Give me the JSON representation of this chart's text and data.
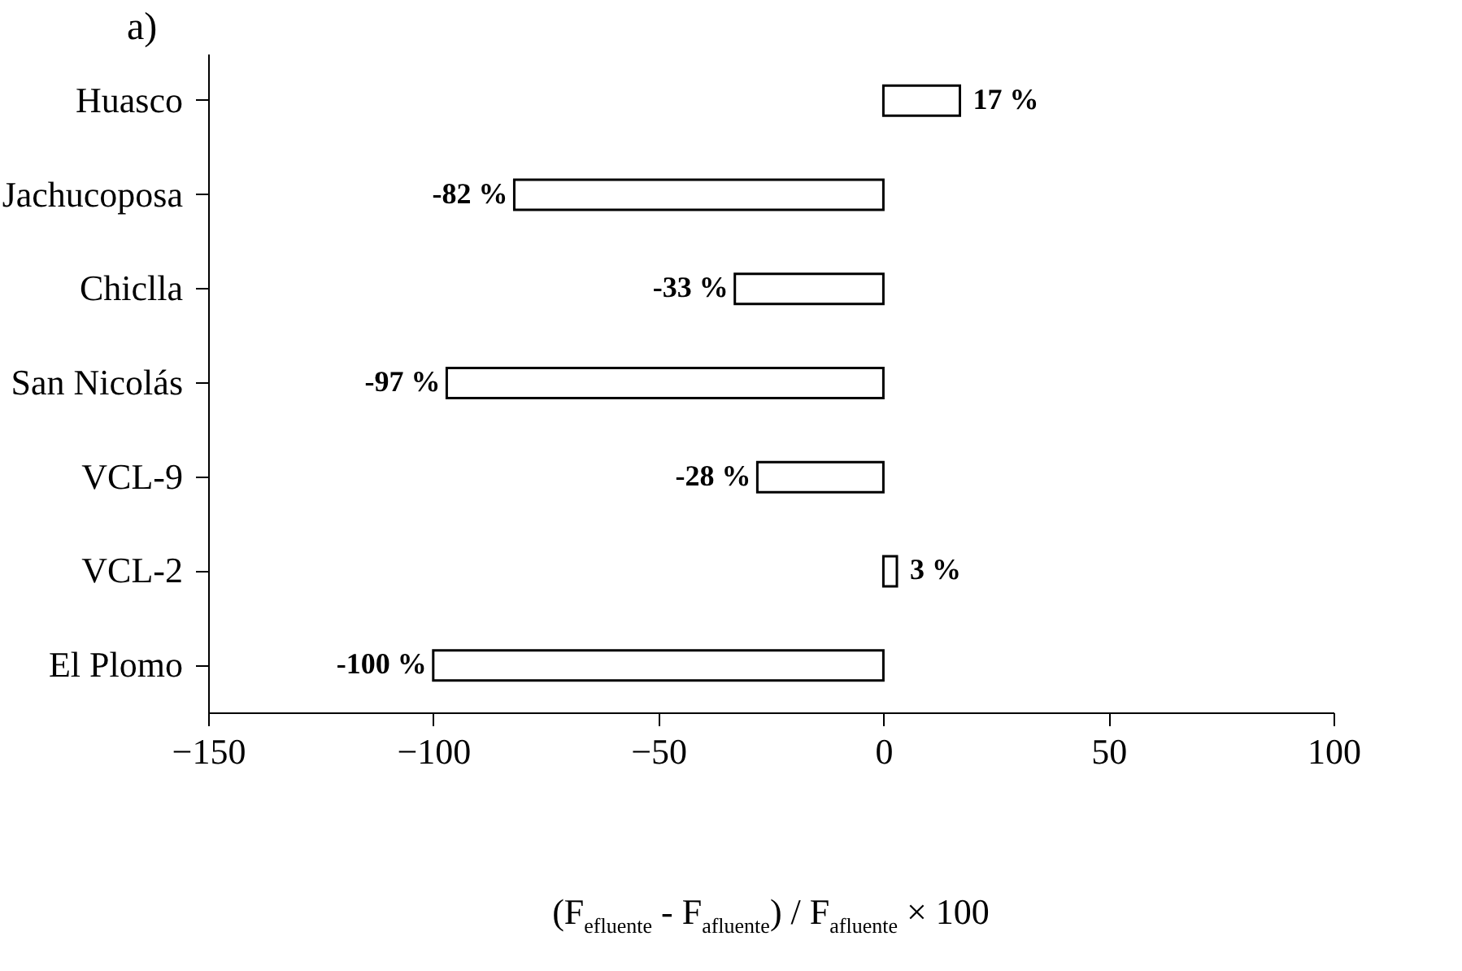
{
  "chart_data": {
    "type": "bar",
    "orientation": "horizontal",
    "title": "a)",
    "xlabel": "(F$_{efluente}$ - F$_{afluente}$) / F$_{afluente}$ × 100",
    "categories": [
      "Huasco",
      "Jachucoposa",
      "Chiclla",
      "San Nicolás",
      "VCL-9",
      "VCL-2",
      "El Plomo"
    ],
    "values": [
      17,
      -82,
      -33,
      -97,
      -28,
      3,
      -100
    ],
    "value_labels": [
      "17 %",
      "-82 %",
      "-33 %",
      "-97 %",
      "-28 %",
      "3 %",
      "-100 %"
    ],
    "color": "#ffffff",
    "xlim": [
      -150,
      100
    ],
    "xticks": [
      -150,
      -100,
      -50,
      0,
      50,
      100
    ],
    "grid": false
  }
}
